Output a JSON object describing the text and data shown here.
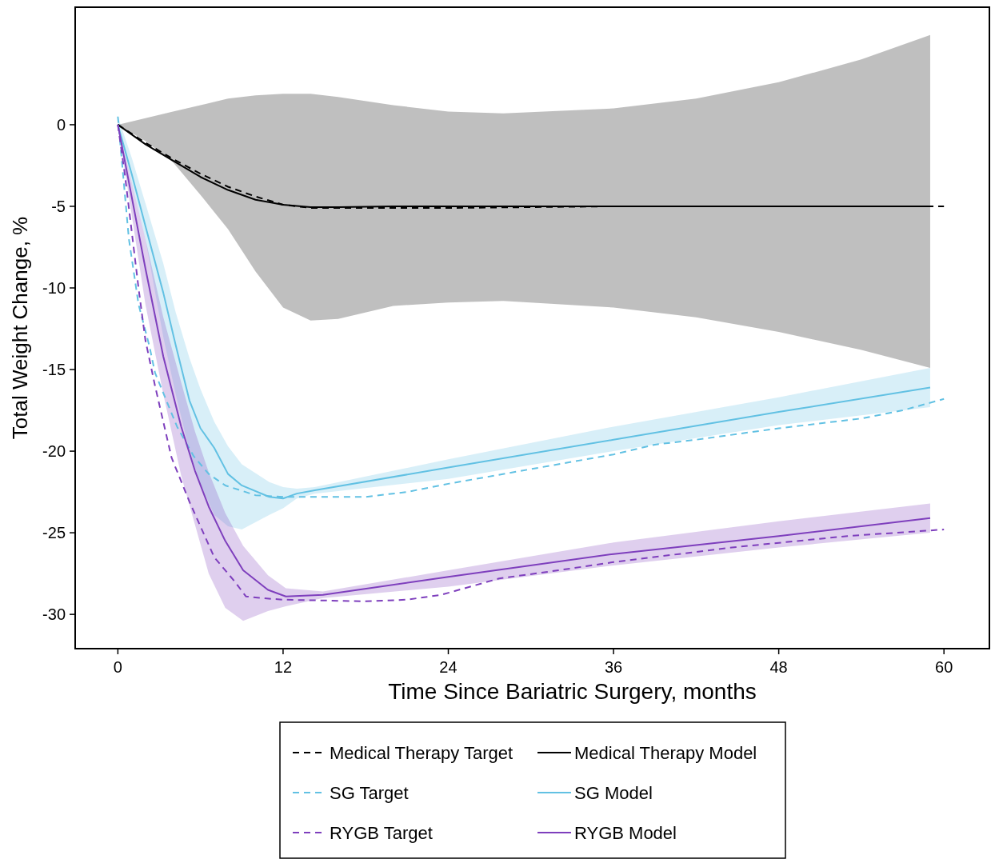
{
  "chart_data": {
    "type": "line",
    "xlabel": "Time Since Bariatric Surgery, months",
    "ylabel": "Total Weight Change, %",
    "xlim": [
      -3.1,
      63.3
    ],
    "ylim": [
      -32.1,
      7.2
    ],
    "xticks": [
      0,
      12,
      24,
      36,
      48,
      60
    ],
    "yticks": [
      0,
      -5,
      -10,
      -15,
      -20,
      -25,
      -30
    ],
    "grid": false,
    "legend": "bottom",
    "series": [
      {
        "name": "Medical Therapy Target",
        "color": "#000000",
        "line_style": "dashed",
        "x": [
          0,
          2,
          4,
          6,
          8,
          10,
          12,
          14,
          16,
          24,
          36,
          48,
          60
        ],
        "values": [
          0,
          -1.1,
          -2.1,
          -3.0,
          -3.8,
          -4.4,
          -4.9,
          -5.1,
          -5.1,
          -5.1,
          -5,
          -5,
          -5
        ]
      },
      {
        "name": "Medical Therapy Model",
        "color": "#000000",
        "line_style": "solid",
        "x": [
          0,
          2,
          4,
          6,
          8,
          10,
          12,
          14,
          16,
          20,
          24,
          28,
          36,
          42,
          48,
          54,
          59
        ],
        "values": [
          0,
          -1.2,
          -2.2,
          -3.2,
          -4.0,
          -4.6,
          -4.9,
          -5.05,
          -5.05,
          -5,
          -5,
          -5,
          -5,
          -5,
          -5,
          -5,
          -5
        ],
        "upper": [
          0,
          0.4,
          0.8,
          1.2,
          1.6,
          1.8,
          1.9,
          1.9,
          1.7,
          1.2,
          0.8,
          0.7,
          1.0,
          1.6,
          2.6,
          4.0,
          5.5
        ],
        "lower": [
          0,
          -1.0,
          -2.3,
          -4.3,
          -6.4,
          -9.0,
          -11.2,
          -12.0,
          -11.9,
          -11.1,
          -10.9,
          -10.8,
          -11.2,
          -11.8,
          -12.7,
          -13.8,
          -14.9
        ]
      },
      {
        "name": "SG Target",
        "color": "#62c1e3",
        "line_style": "dashed",
        "x": [
          0,
          0.8,
          1.5,
          2.3,
          2.7,
          4.3,
          5.5,
          6.6,
          7.8,
          10,
          12,
          18,
          21,
          24,
          30,
          36,
          39,
          42,
          48,
          54,
          57,
          60
        ],
        "values": [
          0.5,
          -7,
          -11,
          -13.6,
          -15.2,
          -18.5,
          -20.3,
          -21.4,
          -22.1,
          -22.7,
          -22.8,
          -22.8,
          -22.5,
          -22,
          -21.1,
          -20.2,
          -19.6,
          -19.3,
          -18.6,
          -18,
          -17.5,
          -16.8
        ]
      },
      {
        "name": "SG Model",
        "color": "#62c1e3",
        "line_style": "solid",
        "x": [
          0,
          1,
          2,
          3.3,
          4.2,
          5.2,
          6,
          7,
          8,
          9,
          11,
          12,
          13,
          14.3,
          24,
          36,
          48,
          59
        ],
        "values": [
          0,
          -3,
          -6.2,
          -10.3,
          -13.5,
          -16.9,
          -18.6,
          -19.8,
          -21.4,
          -22.1,
          -22.8,
          -22.9,
          -22.6,
          -22.4,
          -21,
          -19.3,
          -17.6,
          -16.1
        ],
        "upper": [
          0.5,
          -2,
          -4.8,
          -8.5,
          -11.5,
          -14.3,
          -16.2,
          -18.2,
          -19.7,
          -20.8,
          -21.9,
          -22.2,
          -22.3,
          -22.2,
          -20.5,
          -18.5,
          -16.7,
          -14.9
        ],
        "lower": [
          0,
          -3.5,
          -7,
          -13,
          -16.5,
          -20,
          -22,
          -23.9,
          -24.6,
          -24.8,
          -23.9,
          -23.5,
          -22.9,
          -22.6,
          -21.7,
          -20,
          -18.4,
          -17.3
        ]
      },
      {
        "name": "RYGB Target",
        "color": "#7e3fbd",
        "line_style": "dashed",
        "x": [
          0,
          0.5,
          1,
          1.5,
          2,
          2.7,
          3.9,
          5.2,
          7,
          8.5,
          9.3,
          10.4,
          12,
          18,
          21,
          23.5,
          27.7,
          32,
          36,
          44.6,
          53,
          60
        ],
        "values": [
          0,
          -3,
          -6.5,
          -10,
          -13.2,
          -16,
          -20.4,
          -23.1,
          -26.5,
          -28,
          -28.9,
          -29,
          -29.1,
          -29.2,
          -29.1,
          -28.8,
          -27.8,
          -27.3,
          -26.8,
          -25.9,
          -25.2,
          -24.8
        ]
      },
      {
        "name": "RYGB Model",
        "color": "#7e3fbd",
        "line_style": "solid",
        "x": [
          0,
          1,
          2,
          3.3,
          4.6,
          5.6,
          6.6,
          7.8,
          9.1,
          10.9,
          12.2,
          14.9,
          24,
          36,
          48,
          59
        ],
        "values": [
          0,
          -4.4,
          -8.8,
          -14.2,
          -18.5,
          -21.2,
          -23.4,
          -25.5,
          -27.3,
          -28.5,
          -28.9,
          -28.8,
          -27.7,
          -26.3,
          -25.2,
          -24.1
        ],
        "upper": [
          0,
          -3.5,
          -7,
          -11.8,
          -15.8,
          -18.8,
          -21.3,
          -23.8,
          -25.8,
          -27.6,
          -28.4,
          -28.6,
          -27.3,
          -25.6,
          -24.3,
          -23.2
        ],
        "lower": [
          0,
          -5.5,
          -11,
          -16.5,
          -21.5,
          -24.5,
          -27.5,
          -29.6,
          -30.4,
          -29.8,
          -29.5,
          -29,
          -28.3,
          -27,
          -25.9,
          -25
        ]
      }
    ]
  }
}
